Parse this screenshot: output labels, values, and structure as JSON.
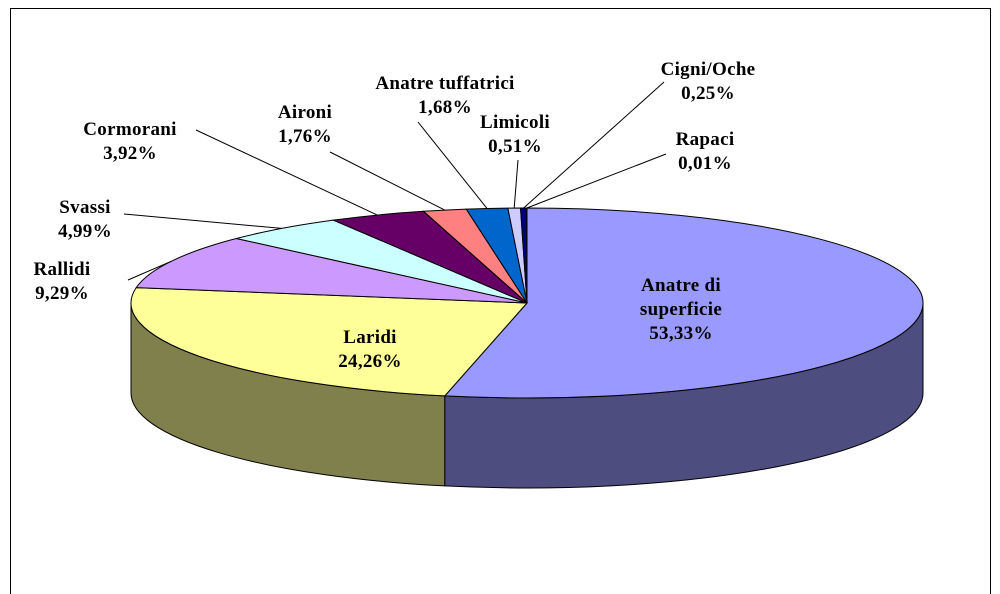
{
  "chart_data": {
    "type": "pie",
    "categories": [
      "Anatre di superficie",
      "Laridi",
      "Rallidi",
      "Svassi",
      "Cormorani",
      "Aironi",
      "Anatre tuffatrici",
      "Limicoli",
      "Cigni/Oche",
      "Rapaci"
    ],
    "values": [
      53.33,
      24.26,
      9.29,
      4.99,
      3.92,
      1.76,
      1.68,
      0.51,
      0.25,
      0.01
    ],
    "value_labels": [
      "53,33%",
      "24,26%",
      "9,29%",
      "4,99%",
      "3,92%",
      "1,76%",
      "1,68%",
      "0,51%",
      "0,25%",
      "0,01%"
    ],
    "colors": [
      "#9999ff",
      "#ffff99",
      "#cc99ff",
      "#ccffff",
      "#660066",
      "#ff8080",
      "#0066cc",
      "#ccccff",
      "#000080",
      "#ff00ff"
    ]
  }
}
